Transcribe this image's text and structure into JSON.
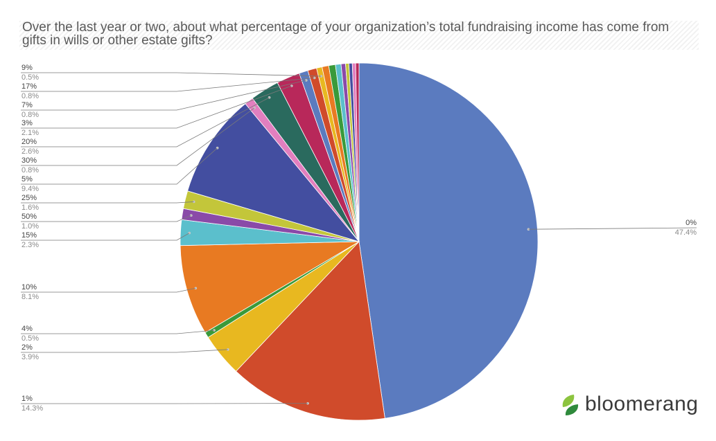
{
  "chart_data": {
    "type": "pie",
    "title": "Over the last year or two, about what percentage of your organization’s total fundraising income has come from gifts in wills or other estate gifts?",
    "start_angle_deg": 0,
    "direction": "clockwise",
    "slices": [
      {
        "label": "0%",
        "value": 47.4,
        "pct_label": "47.4%",
        "color": "#5b7bbf",
        "labeled": true
      },
      {
        "label": "1%",
        "value": 14.3,
        "pct_label": "14.3%",
        "color": "#d04b2b",
        "labeled": true
      },
      {
        "label": "2%",
        "value": 3.9,
        "pct_label": "3.9%",
        "color": "#e8b820",
        "labeled": true
      },
      {
        "label": "4%",
        "value": 0.5,
        "pct_label": "0.5%",
        "color": "#3a9a3a",
        "labeled": true
      },
      {
        "label": "10%",
        "value": 8.1,
        "pct_label": "8.1%",
        "color": "#e87a22",
        "labeled": true
      },
      {
        "label": "15%",
        "value": 2.3,
        "pct_label": "2.3%",
        "color": "#5bbfcc",
        "labeled": true
      },
      {
        "label": "50%",
        "value": 1.0,
        "pct_label": "1.0%",
        "color": "#8a4aa8",
        "labeled": true
      },
      {
        "label": "25%",
        "value": 1.6,
        "pct_label": "1.6%",
        "color": "#c3c63a",
        "labeled": true
      },
      {
        "label": "5%",
        "value": 9.4,
        "pct_label": "9.4%",
        "color": "#434ea0",
        "labeled": true
      },
      {
        "label": "30%",
        "value": 0.8,
        "pct_label": "0.8%",
        "color": "#e27fbf",
        "labeled": true
      },
      {
        "label": "20%",
        "value": 2.6,
        "pct_label": "2.6%",
        "color": "#2a6a5e",
        "labeled": true
      },
      {
        "label": "3%",
        "value": 2.1,
        "pct_label": "2.1%",
        "color": "#b8285a",
        "labeled": true
      },
      {
        "label": "7%",
        "value": 0.8,
        "pct_label": "0.8%",
        "color": "#5b7bbf",
        "labeled": true
      },
      {
        "label": "17%",
        "value": 0.8,
        "pct_label": "0.8%",
        "color": "#d04b2b",
        "labeled": true
      },
      {
        "label": "9%",
        "value": 0.5,
        "pct_label": "0.5%",
        "color": "#e8b820",
        "labeled": true
      },
      {
        "label": "",
        "value": 0.6,
        "pct_label": "",
        "color": "#e87a22",
        "labeled": false
      },
      {
        "label": "",
        "value": 0.6,
        "pct_label": "",
        "color": "#3a9a3a",
        "labeled": false
      },
      {
        "label": "",
        "value": 0.5,
        "pct_label": "",
        "color": "#5bbfcc",
        "labeled": false
      },
      {
        "label": "",
        "value": 0.4,
        "pct_label": "",
        "color": "#8a4aa8",
        "labeled": false
      },
      {
        "label": "",
        "value": 0.3,
        "pct_label": "",
        "color": "#c3c63a",
        "labeled": false
      },
      {
        "label": "",
        "value": 0.3,
        "pct_label": "",
        "color": "#434ea0",
        "labeled": false
      },
      {
        "label": "",
        "value": 0.3,
        "pct_label": "",
        "color": "#e27fbf",
        "labeled": false
      },
      {
        "label": "",
        "value": 0.3,
        "pct_label": "",
        "color": "#b8285a",
        "labeled": false
      }
    ]
  },
  "logo": {
    "text": "bloomerang",
    "leaf_colors": [
      "#8cc43f",
      "#2f8a3c"
    ]
  }
}
